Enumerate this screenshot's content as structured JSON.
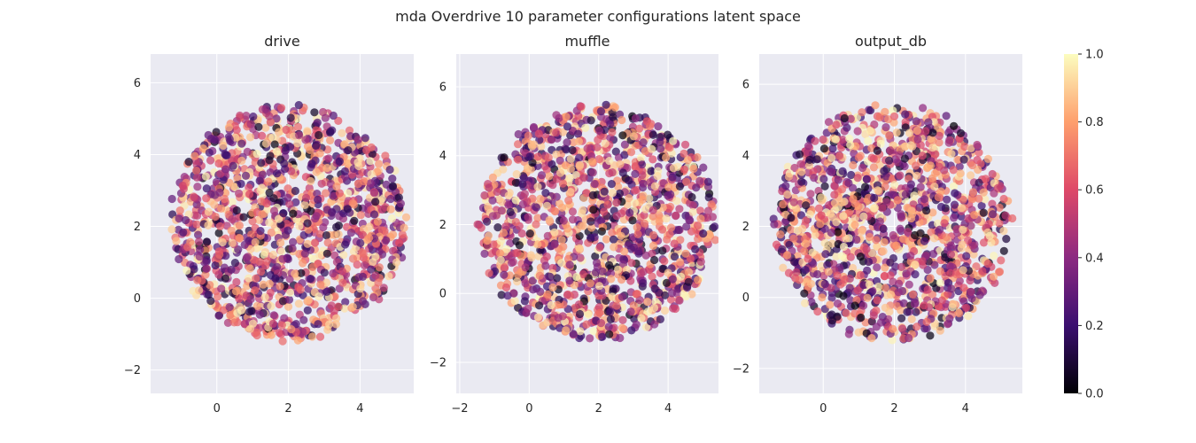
{
  "figure": {
    "title": "mda Overdrive 10 parameter configurations latent space"
  },
  "colors": {
    "background": "#ffffff",
    "plot_background": "#eaeaf2",
    "grid": "#ffffff",
    "text": "#262626",
    "colormap": "magma",
    "colormap_stops": [
      "#000004",
      "#3b0f70",
      "#8c2981",
      "#de4968",
      "#fe9f6d",
      "#fcfdbf"
    ]
  },
  "chart_data": [
    {
      "type": "scatter",
      "title": "drive",
      "xlabel": "",
      "ylabel": "",
      "xlim": [
        -1.85,
        5.5
      ],
      "ylim": [
        -2.65,
        6.8
      ],
      "xticks": [
        0,
        2,
        4
      ],
      "yticks": [
        -2,
        0,
        2,
        4,
        6
      ],
      "grid": true,
      "point_cloud": {
        "center": [
          2.0,
          2.1
        ],
        "radius": 3.25,
        "count": 1400,
        "seed": 11,
        "value_range": [
          0,
          1
        ]
      }
    },
    {
      "type": "scatter",
      "title": "muffle",
      "xlabel": "",
      "ylabel": "",
      "xlim": [
        -2.1,
        5.45
      ],
      "ylim": [
        -2.9,
        6.95
      ],
      "xticks": [
        -2,
        0,
        2,
        4
      ],
      "yticks": [
        -2,
        0,
        2,
        4,
        6
      ],
      "grid": true,
      "point_cloud": {
        "center": [
          1.95,
          2.05
        ],
        "radius": 3.4,
        "count": 1400,
        "seed": 29,
        "value_range": [
          0,
          1
        ]
      }
    },
    {
      "type": "scatter",
      "title": "output_db",
      "xlabel": "",
      "ylabel": "",
      "xlim": [
        -1.8,
        5.6
      ],
      "ylim": [
        -2.7,
        6.85
      ],
      "xticks": [
        0,
        2,
        4
      ],
      "yticks": [
        -2,
        0,
        2,
        4,
        6
      ],
      "grid": true,
      "point_cloud": {
        "center": [
          1.95,
          2.1
        ],
        "radius": 3.3,
        "count": 1400,
        "seed": 47,
        "value_range": [
          0,
          1
        ]
      }
    }
  ],
  "colorbar": {
    "ticks": [
      0.0,
      0.2,
      0.4,
      0.6,
      0.8,
      1.0
    ],
    "tick_labels": [
      "0.0",
      "0.2",
      "0.4",
      "0.6",
      "0.8",
      "1.0"
    ],
    "range": [
      0,
      1
    ]
  }
}
